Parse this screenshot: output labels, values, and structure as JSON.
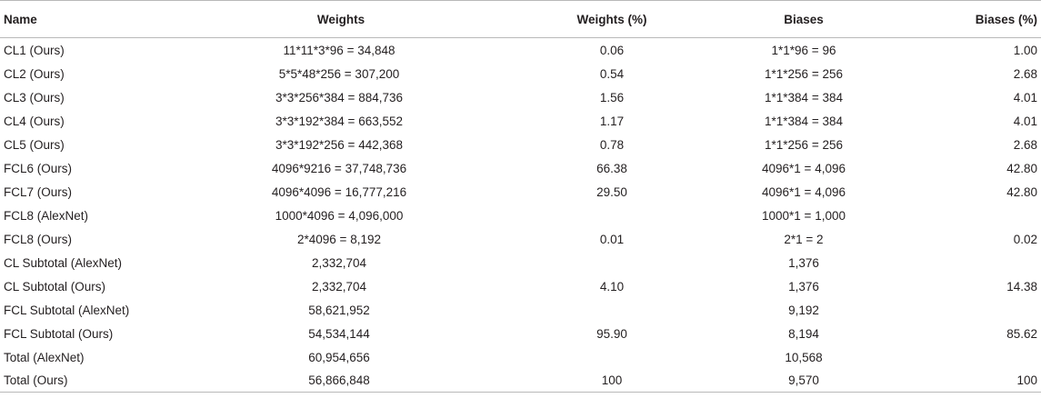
{
  "table": {
    "headers": [
      "Name",
      "Weights",
      "Weights (%)",
      "Biases",
      "Biases (%)"
    ],
    "rows": [
      [
        "CL1 (Ours)",
        "11*11*3*96 = 34,848",
        "0.06",
        "1*1*96 = 96",
        "1.00"
      ],
      [
        "CL2 (Ours)",
        "5*5*48*256 = 307,200",
        "0.54",
        "1*1*256 = 256",
        "2.68"
      ],
      [
        "CL3 (Ours)",
        "3*3*256*384 = 884,736",
        "1.56",
        "1*1*384 = 384",
        "4.01"
      ],
      [
        "CL4 (Ours)",
        "3*3*192*384 = 663,552",
        "1.17",
        "1*1*384 = 384",
        "4.01"
      ],
      [
        "CL5 (Ours)",
        "3*3*192*256 = 442,368",
        "0.78",
        "1*1*256 = 256",
        "2.68"
      ],
      [
        "FCL6 (Ours)",
        "4096*9216 = 37,748,736",
        "66.38",
        "4096*1 = 4,096",
        "42.80"
      ],
      [
        "FCL7 (Ours)",
        "4096*4096 = 16,777,216",
        "29.50",
        "4096*1 = 4,096",
        "42.80"
      ],
      [
        "FCL8 (AlexNet)",
        "1000*4096 = 4,096,000",
        "",
        "1000*1 = 1,000",
        ""
      ],
      [
        "FCL8 (Ours)",
        "2*4096 = 8,192",
        "0.01",
        "2*1 = 2",
        "0.02"
      ],
      [
        "CL Subtotal (AlexNet)",
        "2,332,704",
        "",
        "1,376",
        ""
      ],
      [
        "CL Subtotal (Ours)",
        "2,332,704",
        "4.10",
        "1,376",
        "14.38"
      ],
      [
        "FCL Subtotal (AlexNet)",
        "58,621,952",
        "",
        "9,192",
        ""
      ],
      [
        "FCL Subtotal (Ours)",
        "54,534,144",
        "95.90",
        "8,194",
        "85.62"
      ],
      [
        "Total (AlexNet)",
        "60,954,656",
        "",
        "10,568",
        ""
      ],
      [
        "Total (Ours)",
        "56,866,848",
        "100",
        "9,570",
        "100"
      ]
    ]
  }
}
